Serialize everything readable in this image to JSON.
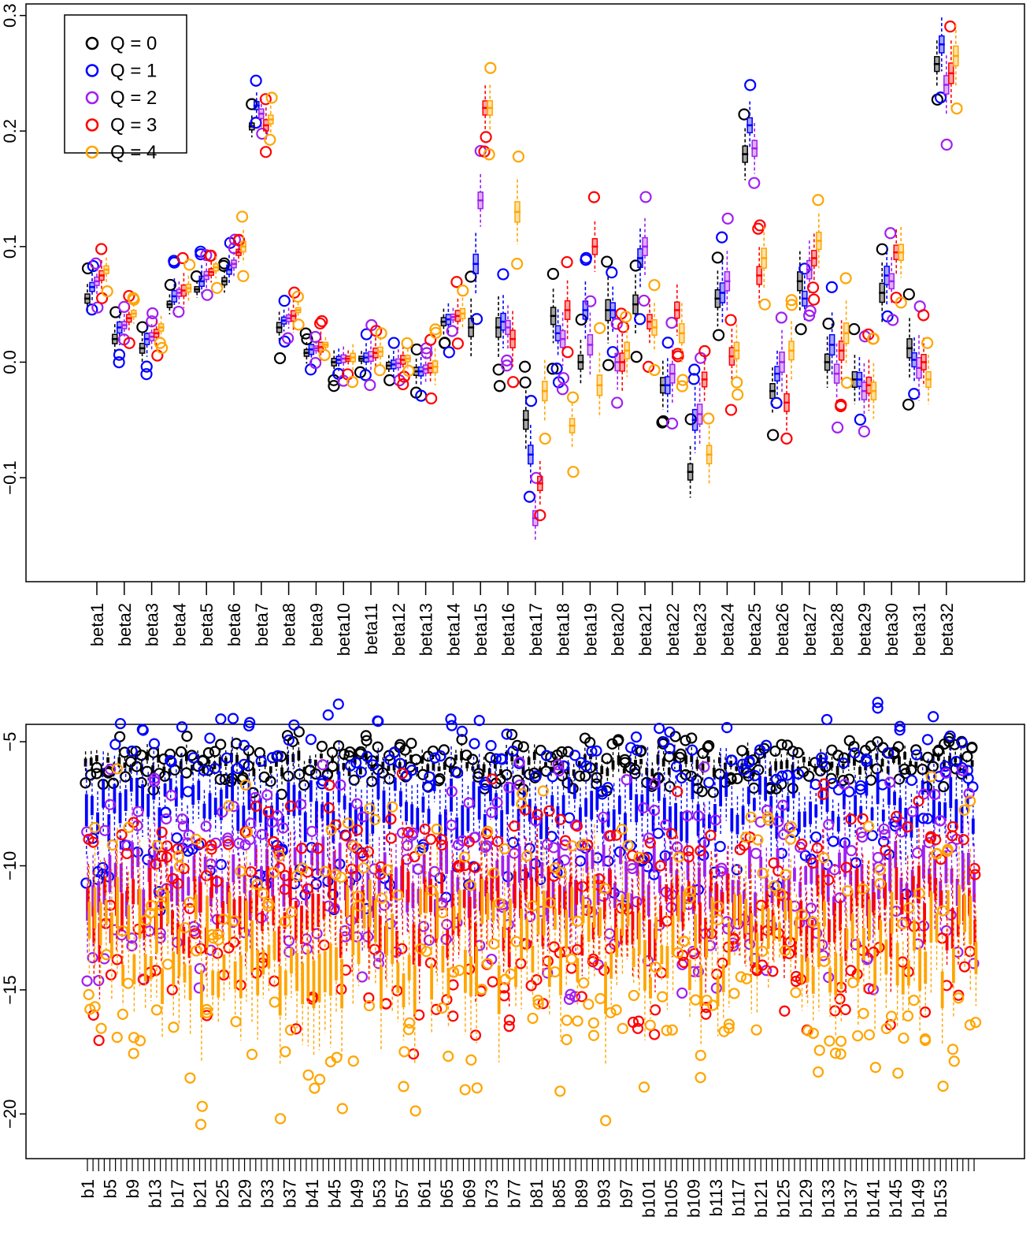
{
  "chart_data": [
    {
      "type": "boxplot",
      "categories": [
        "beta1",
        "beta2",
        "beta3",
        "beta4",
        "beta5",
        "beta6",
        "beta7",
        "beta8",
        "beta9",
        "beta10",
        "beta11",
        "beta12",
        "beta13",
        "beta14",
        "beta15",
        "beta16",
        "beta17",
        "beta18",
        "beta19",
        "beta20",
        "beta21",
        "beta22",
        "beta23",
        "beta24",
        "beta25",
        "beta26",
        "beta27",
        "beta28",
        "beta29",
        "beta30",
        "beta31",
        "beta32"
      ],
      "ylim": [
        -0.19,
        0.31
      ],
      "yticks": [
        -0.1,
        0.0,
        0.1,
        0.2,
        0.3
      ],
      "ytick_labels": [
        "−0.1",
        "0.0",
        "0.1",
        "0.2",
        "0.3"
      ],
      "legend": {
        "placement": "top-left",
        "entries": [
          "Q = 0",
          "Q = 1",
          "Q = 2",
          "Q = 3",
          "Q = 4"
        ]
      },
      "series": [
        {
          "name": "Q = 0",
          "color": "#000000",
          "medians": [
            0.055,
            0.02,
            0.012,
            0.05,
            0.063,
            0.07,
            0.204,
            0.03,
            0.008,
            0.0,
            0.003,
            -0.003,
            -0.008,
            0.035,
            0.03,
            0.03,
            -0.05,
            0.04,
            0.0,
            0.045,
            0.05,
            -0.02,
            -0.095,
            0.055,
            0.18,
            -0.025,
            0.07,
            0.0,
            -0.015,
            0.06,
            0.012,
            0.258
          ]
        },
        {
          "name": "Q = 1",
          "color": "#0000ff",
          "medians": [
            0.065,
            0.03,
            0.02,
            0.057,
            0.07,
            0.08,
            0.222,
            0.036,
            0.011,
            0.002,
            0.004,
            -0.002,
            -0.008,
            0.037,
            0.085,
            0.035,
            -0.08,
            0.025,
            0.045,
            0.045,
            0.09,
            -0.02,
            -0.05,
            0.06,
            0.205,
            -0.01,
            0.055,
            0.015,
            -0.015,
            0.075,
            0.002,
            0.275
          ]
        },
        {
          "name": "Q = 2",
          "color": "#a020f0",
          "medians": [
            0.07,
            0.032,
            0.022,
            0.06,
            0.075,
            0.085,
            0.215,
            0.038,
            0.012,
            0.003,
            0.005,
            -0.001,
            -0.006,
            0.039,
            0.14,
            0.03,
            -0.135,
            0.02,
            0.015,
            0.0,
            0.1,
            -0.01,
            -0.045,
            0.07,
            0.185,
            0.0,
            0.08,
            -0.01,
            -0.025,
            0.07,
            -0.005,
            0.24
          ]
        },
        {
          "name": "Q = 3",
          "color": "#ff0000",
          "medians": [
            0.075,
            0.038,
            0.025,
            0.062,
            0.078,
            0.095,
            0.205,
            0.04,
            0.013,
            0.003,
            0.008,
            0.002,
            -0.005,
            0.04,
            0.22,
            0.02,
            -0.105,
            0.045,
            0.1,
            0.0,
            0.035,
            0.045,
            -0.015,
            0.005,
            0.075,
            -0.035,
            0.09,
            0.01,
            -0.02,
            0.095,
            0.0,
            0.25
          ]
        },
        {
          "name": "Q = 4",
          "color": "#ffa500",
          "medians": [
            0.08,
            0.042,
            0.03,
            0.064,
            0.082,
            0.1,
            0.21,
            0.045,
            0.015,
            0.004,
            0.009,
            0.003,
            -0.004,
            0.042,
            0.22,
            0.13,
            -0.025,
            -0.055,
            -0.02,
            0.01,
            0.03,
            0.025,
            -0.08,
            0.01,
            0.09,
            0.01,
            0.105,
            0.025,
            -0.025,
            0.095,
            -0.015,
            0.265
          ]
        }
      ]
    },
    {
      "type": "boxplot",
      "n_categories": 159,
      "tick_labels": [
        "b1",
        "b5",
        "b9",
        "b13",
        "b17",
        "b21",
        "b25",
        "b29",
        "b33",
        "b37",
        "b41",
        "b45",
        "b49",
        "b53",
        "b57",
        "b61",
        "b65",
        "b69",
        "b73",
        "b77",
        "b81",
        "b85",
        "b89",
        "b93",
        "b97",
        "b101",
        "b105",
        "b109",
        "b113",
        "b117",
        "b121",
        "b125",
        "b129",
        "b133",
        "b137",
        "b141",
        "b145",
        "b149",
        "b153"
      ],
      "ylim": [
        -21.8,
        -4.3
      ],
      "yticks": [
        -20,
        -15,
        -10,
        -5
      ],
      "ytick_labels": [
        "−20",
        "−15",
        "−10",
        "−5"
      ],
      "series": [
        {
          "name": "Q = 0",
          "color": "#000000",
          "typical_median": -5.9
        },
        {
          "name": "Q = 1",
          "color": "#0000ff",
          "typical_median": -7.6
        },
        {
          "name": "Q = 2",
          "color": "#a020f0",
          "typical_median": -10.6
        },
        {
          "name": "Q = 3",
          "color": "#ff0000",
          "typical_median": -11.9
        },
        {
          "name": "Q = 4",
          "color": "#ffa500",
          "typical_median": -13.3
        }
      ]
    }
  ]
}
